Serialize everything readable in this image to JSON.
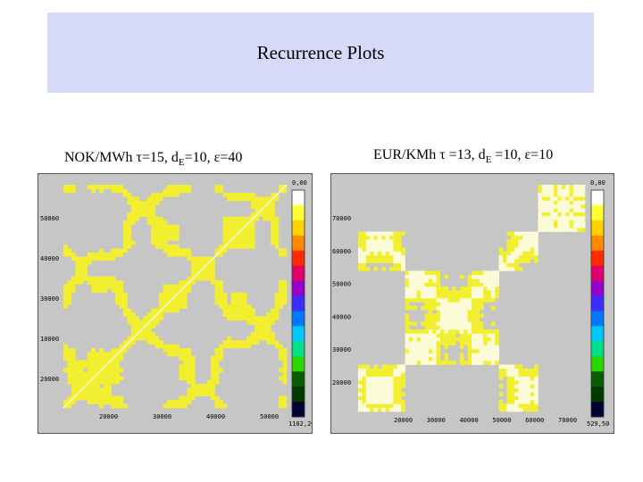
{
  "title": "Recurrence Plots",
  "left": {
    "caption_prefix": "NOK/MWh τ=15, d",
    "caption_sub": "E",
    "caption_suffix": "=10, ε=40",
    "y_ticks": [
      "50000",
      "40000",
      "30000",
      "10000",
      "20000"
    ],
    "x_ticks": [
      "20000",
      "30000",
      "40000",
      "50000"
    ],
    "scale_top": "0,00",
    "scale_bottom": "1102,20"
  },
  "right": {
    "caption_prefix": "EUR/KMh τ =13, d",
    "caption_sub": "E",
    "caption_suffix": " =10, ε=10",
    "y_ticks": [
      "70000",
      "60000",
      "50000",
      "40000",
      "30000",
      "20000"
    ],
    "x_ticks": [
      "20000",
      "30000",
      "40000",
      "50000",
      "60000",
      "70000"
    ],
    "scale_top": "0,00",
    "scale_bottom": "529,50"
  },
  "colors": {
    "recurrence": "#f2ef30",
    "light": "#fbfbd8",
    "background": "#c6c6c6"
  }
}
